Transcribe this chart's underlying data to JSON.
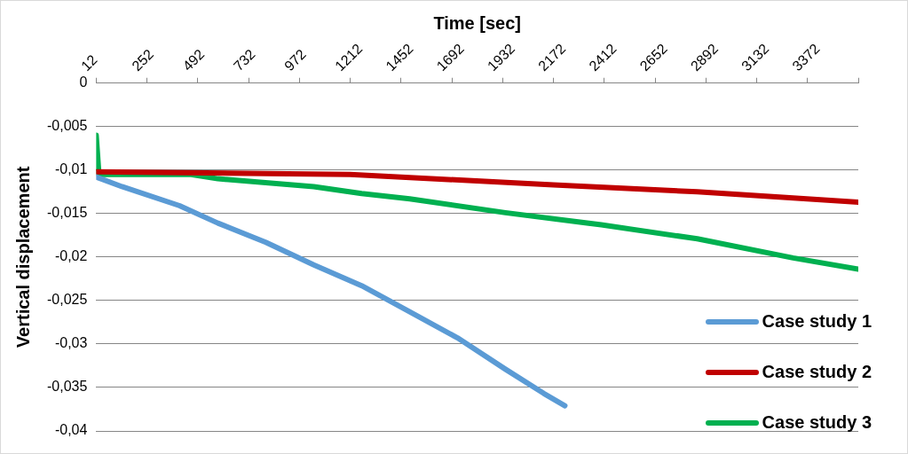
{
  "chart_data": {
    "type": "line",
    "xlabel": "Time [sec]",
    "ylabel": "Vertical displacement",
    "xlim": [
      12,
      3612
    ],
    "xticks": [
      12,
      252,
      492,
      732,
      972,
      1212,
      1452,
      1692,
      1932,
      2172,
      2412,
      2652,
      2892,
      3132,
      3372,
      {
        "value": 3612,
        "label": null
      }
    ],
    "ylim": [
      -0.04,
      0
    ],
    "yticks": [
      0,
      {
        "value": -0.005,
        "label": "-0,005"
      },
      {
        "value": -0.01,
        "label": "-0,01"
      },
      {
        "value": -0.015,
        "label": "-0,015"
      },
      {
        "value": -0.02,
        "label": "-0,02"
      },
      {
        "value": -0.025,
        "label": "-0,025"
      },
      {
        "value": -0.03,
        "label": "-0,03"
      },
      {
        "value": -0.035,
        "label": "-0,035"
      },
      {
        "value": -0.04,
        "label": "-0,04"
      }
    ],
    "grid": "y",
    "legend": "bottom right",
    "marker": "none",
    "line_style": "solid",
    "series": [
      {
        "name": "Case study 1",
        "color": "#5b9bd5",
        "x": [
          12,
          134,
          406,
          587,
          813,
          1040,
          1266,
          1493,
          1719,
          1945,
          2127,
          2226
        ],
        "values": [
          -0.0108,
          -0.0119,
          -0.0141,
          -0.0161,
          -0.0183,
          -0.0209,
          -0.0233,
          -0.0263,
          -0.0293,
          -0.0329,
          -0.0357,
          -0.0371
        ]
      },
      {
        "name": "Case study 2",
        "color": "#c00000",
        "x": [
          12,
          1212,
          2172,
          2851,
          3612
        ],
        "values": [
          -0.0102,
          -0.0105,
          -0.0117,
          -0.0125,
          -0.0137
        ]
      },
      {
        "name": "Case study 3",
        "color": "#00b050",
        "x": [
          12,
          25,
          460,
          587,
          1040,
          1266,
          1493,
          1945,
          2398,
          2851,
          3304,
          3612
        ],
        "values": [
          -0.006,
          -0.0105,
          -0.0105,
          -0.011,
          -0.0119,
          -0.0127,
          -0.0133,
          -0.0149,
          -0.0163,
          -0.0179,
          -0.0201,
          -0.0214
        ]
      }
    ]
  }
}
